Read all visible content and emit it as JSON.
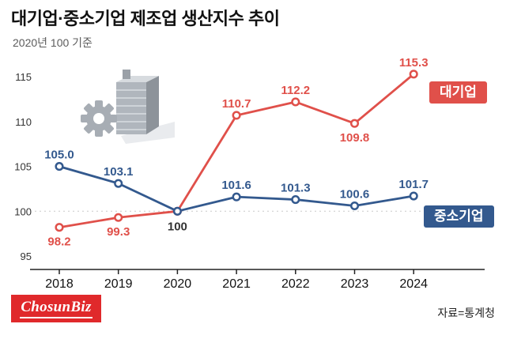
{
  "header": {
    "title": "대기업·중소기업 제조업 생산지수 추이",
    "subtitle": "2020년 100 기준"
  },
  "chart_data": {
    "type": "line",
    "x": [
      "2018",
      "2019",
      "2020",
      "2021",
      "2022",
      "2023",
      "2024"
    ],
    "yticks": [
      "95",
      "100",
      "105",
      "110",
      "115"
    ],
    "ylim": [
      95,
      115
    ],
    "grid_line_at": 100,
    "legend_position": "right",
    "series": [
      {
        "name": "대기업",
        "color": "#e0504a",
        "values": [
          98.2,
          99.3,
          100,
          110.7,
          112.2,
          109.8,
          115.3
        ],
        "labels": [
          "98.2",
          "99.3",
          "100",
          "110.7",
          "112.2",
          "109.8",
          "115.3"
        ],
        "label_pos": [
          "below",
          "below",
          null,
          "above",
          "above",
          "below",
          "above"
        ]
      },
      {
        "name": "중소기업",
        "color": "#33598e",
        "values": [
          105.0,
          103.1,
          100,
          101.6,
          101.3,
          100.6,
          101.7
        ],
        "labels": [
          "105.0",
          "103.1",
          "100",
          "101.6",
          "101.3",
          "100.6",
          "101.7"
        ],
        "label_pos": [
          "above",
          "above",
          null,
          "above",
          "above",
          "above",
          "above"
        ]
      }
    ],
    "shared_label": {
      "index": 2,
      "value": 100,
      "text": "100"
    },
    "legend": [
      {
        "label": "대기업",
        "color": "#e0504a"
      },
      {
        "label": "중소기업",
        "color": "#33598e"
      }
    ]
  },
  "footer": {
    "logo_text": "ChosunBiz",
    "source": "자료=통계청"
  }
}
